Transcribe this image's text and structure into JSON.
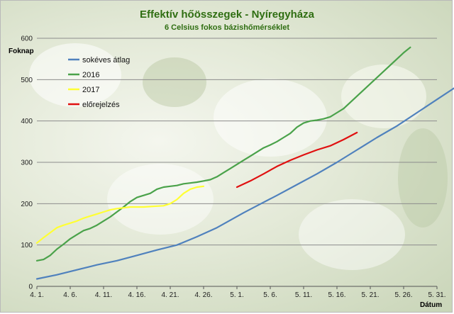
{
  "chart_data": {
    "type": "line",
    "title": "Effektív hőösszegek - Nyíregyháza",
    "subtitle": "6 Celsius fokos bázishőmérséklet",
    "ylabel": "Foknap",
    "xlabel": "Dátum",
    "ylim": [
      0,
      600
    ],
    "yticks": [
      0,
      100,
      200,
      300,
      400,
      500,
      600
    ],
    "xlim": [
      0,
      60
    ],
    "xticks": [
      {
        "x": 0,
        "label": "4. 1."
      },
      {
        "x": 5,
        "label": "4. 6."
      },
      {
        "x": 10,
        "label": "4. 11."
      },
      {
        "x": 15,
        "label": "4. 16."
      },
      {
        "x": 20,
        "label": "4. 21."
      },
      {
        "x": 25,
        "label": "4. 26."
      },
      {
        "x": 30,
        "label": "5. 1."
      },
      {
        "x": 35,
        "label": "5. 6."
      },
      {
        "x": 40,
        "label": "5. 11."
      },
      {
        "x": 45,
        "label": "5. 16."
      },
      {
        "x": 50,
        "label": "5. 21."
      },
      {
        "x": 55,
        "label": "5. 26."
      },
      {
        "x": 60,
        "label": "5. 31."
      }
    ],
    "grid": true,
    "legend_position": "top-left",
    "series": [
      {
        "name": "sokéves átlag",
        "color": "#4f81bd",
        "points": [
          [
            0,
            18
          ],
          [
            3,
            28
          ],
          [
            6,
            40
          ],
          [
            9,
            52
          ],
          [
            12,
            62
          ],
          [
            15,
            75
          ],
          [
            18,
            88
          ],
          [
            21,
            100
          ],
          [
            24,
            120
          ],
          [
            27,
            142
          ],
          [
            29,
            160
          ],
          [
            31,
            178
          ],
          [
            33,
            195
          ],
          [
            36,
            220
          ],
          [
            39,
            246
          ],
          [
            42,
            272
          ],
          [
            45,
            300
          ],
          [
            48,
            330
          ],
          [
            51,
            360
          ],
          [
            54,
            388
          ],
          [
            57,
            420
          ],
          [
            60,
            452
          ],
          [
            63,
            484
          ]
        ]
      },
      {
        "name": "2016",
        "color": "#4aa24a",
        "points": [
          [
            0,
            62
          ],
          [
            1,
            65
          ],
          [
            2,
            75
          ],
          [
            3,
            90
          ],
          [
            4,
            102
          ],
          [
            5,
            115
          ],
          [
            6,
            125
          ],
          [
            7,
            135
          ],
          [
            8,
            140
          ],
          [
            9,
            148
          ],
          [
            10,
            158
          ],
          [
            11,
            168
          ],
          [
            12,
            180
          ],
          [
            13,
            192
          ],
          [
            14,
            205
          ],
          [
            15,
            215
          ],
          [
            16,
            220
          ],
          [
            17,
            225
          ],
          [
            18,
            235
          ],
          [
            19,
            240
          ],
          [
            20,
            242
          ],
          [
            21,
            244
          ],
          [
            22,
            248
          ],
          [
            23,
            250
          ],
          [
            24,
            252
          ],
          [
            25,
            255
          ],
          [
            26,
            258
          ],
          [
            27,
            265
          ],
          [
            28,
            275
          ],
          [
            29,
            285
          ],
          [
            30,
            295
          ],
          [
            31,
            305
          ],
          [
            32,
            315
          ],
          [
            33,
            325
          ],
          [
            34,
            335
          ],
          [
            35,
            342
          ],
          [
            36,
            350
          ],
          [
            37,
            360
          ],
          [
            38,
            370
          ],
          [
            39,
            385
          ],
          [
            40,
            395
          ],
          [
            41,
            400
          ],
          [
            42,
            402
          ],
          [
            43,
            405
          ],
          [
            44,
            410
          ],
          [
            45,
            420
          ],
          [
            46,
            430
          ],
          [
            47,
            445
          ],
          [
            48,
            460
          ],
          [
            49,
            475
          ],
          [
            50,
            490
          ],
          [
            51,
            505
          ],
          [
            52,
            520
          ],
          [
            53,
            535
          ],
          [
            54,
            550
          ],
          [
            55,
            565
          ],
          [
            56,
            578
          ]
        ]
      },
      {
        "name": "2017",
        "color": "#ffff33",
        "points": [
          [
            0,
            105
          ],
          [
            1,
            118
          ],
          [
            2,
            130
          ],
          [
            3,
            142
          ],
          [
            4,
            148
          ],
          [
            5,
            153
          ],
          [
            6,
            158
          ],
          [
            7,
            165
          ],
          [
            8,
            170
          ],
          [
            9,
            175
          ],
          [
            10,
            180
          ],
          [
            11,
            185
          ],
          [
            12,
            188
          ],
          [
            13,
            190
          ],
          [
            14,
            192
          ],
          [
            15,
            192
          ],
          [
            16,
            192
          ],
          [
            17,
            193
          ],
          [
            18,
            194
          ],
          [
            19,
            195
          ],
          [
            20,
            200
          ],
          [
            21,
            210
          ],
          [
            22,
            225
          ],
          [
            23,
            235
          ],
          [
            24,
            240
          ],
          [
            25,
            242
          ]
        ]
      },
      {
        "name": "előrejelzés",
        "color": "#e01010",
        "points": [
          [
            30,
            240
          ],
          [
            32,
            255
          ],
          [
            34,
            272
          ],
          [
            36,
            290
          ],
          [
            38,
            305
          ],
          [
            40,
            318
          ],
          [
            42,
            330
          ],
          [
            44,
            340
          ],
          [
            46,
            355
          ],
          [
            48,
            372
          ]
        ]
      }
    ]
  }
}
